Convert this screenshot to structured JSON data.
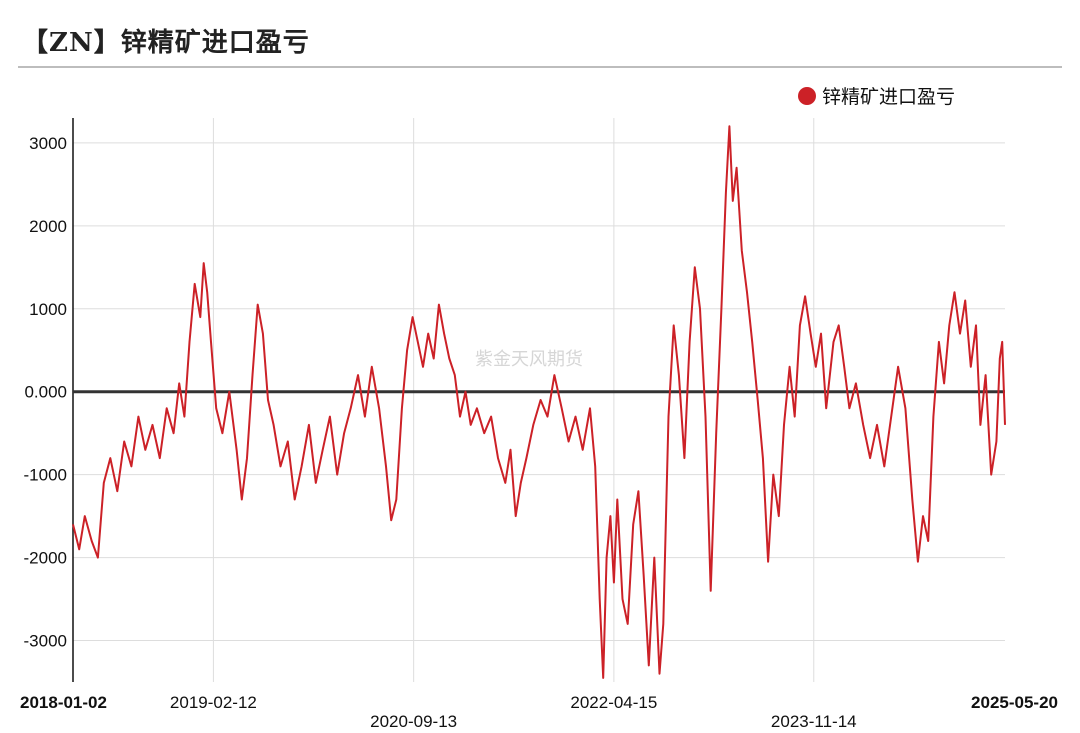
{
  "title": "【ZN】锌精矿进口盈亏",
  "watermark": "紫金天风期货",
  "colors": {
    "series": "#cc2127",
    "zero_line": "#333333",
    "grid": "#dddddd"
  },
  "chart_data": {
    "type": "line",
    "title": "【ZN】锌精矿进口盈亏",
    "xlabel": "",
    "ylabel": "",
    "ylim": [
      -3500,
      3300
    ],
    "yticks": [
      3000,
      2000,
      1000,
      0,
      -1000,
      -2000,
      -3000
    ],
    "ytick_labels": [
      "3000",
      "2000",
      "1000",
      "0.000",
      "-1000",
      "-2000",
      "-3000"
    ],
    "x_range": [
      "2018-01-02",
      "2025-05-20"
    ],
    "xticks": [
      "2018-01-02",
      "2019-02-12",
      "2020-09-13",
      "2022-04-15",
      "2023-11-14",
      "2025-05-20"
    ],
    "grid": true,
    "legend": "top-right",
    "series": [
      {
        "name": "锌精矿进口盈亏",
        "color": "#cc2127",
        "points": [
          [
            "2018-01-02",
            -1600
          ],
          [
            "2018-01-20",
            -1900
          ],
          [
            "2018-02-05",
            -1500
          ],
          [
            "2018-02-25",
            -1800
          ],
          [
            "2018-03-15",
            -2000
          ],
          [
            "2018-04-01",
            -1100
          ],
          [
            "2018-04-20",
            -800
          ],
          [
            "2018-05-10",
            -1200
          ],
          [
            "2018-05-30",
            -600
          ],
          [
            "2018-06-20",
            -900
          ],
          [
            "2018-07-10",
            -300
          ],
          [
            "2018-07-30",
            -700
          ],
          [
            "2018-08-20",
            -400
          ],
          [
            "2018-09-10",
            -800
          ],
          [
            "2018-09-30",
            -200
          ],
          [
            "2018-10-20",
            -500
          ],
          [
            "2018-11-05",
            100
          ],
          [
            "2018-11-20",
            -300
          ],
          [
            "2018-12-05",
            600
          ],
          [
            "2018-12-20",
            1300
          ],
          [
            "2019-01-05",
            900
          ],
          [
            "2019-01-15",
            1550
          ],
          [
            "2019-01-25",
            1200
          ],
          [
            "2019-02-05",
            600
          ],
          [
            "2019-02-20",
            -200
          ],
          [
            "2019-03-10",
            -500
          ],
          [
            "2019-03-30",
            0
          ],
          [
            "2019-04-20",
            -700
          ],
          [
            "2019-05-05",
            -1300
          ],
          [
            "2019-05-20",
            -800
          ],
          [
            "2019-06-05",
            200
          ],
          [
            "2019-06-20",
            1050
          ],
          [
            "2019-07-05",
            700
          ],
          [
            "2019-07-20",
            -100
          ],
          [
            "2019-08-05",
            -400
          ],
          [
            "2019-08-25",
            -900
          ],
          [
            "2019-09-15",
            -600
          ],
          [
            "2019-10-05",
            -1300
          ],
          [
            "2019-10-25",
            -900
          ],
          [
            "2019-11-15",
            -400
          ],
          [
            "2019-12-05",
            -1100
          ],
          [
            "2019-12-25",
            -700
          ],
          [
            "2020-01-15",
            -300
          ],
          [
            "2020-02-05",
            -1000
          ],
          [
            "2020-02-25",
            -500
          ],
          [
            "2020-03-15",
            -200
          ],
          [
            "2020-04-05",
            200
          ],
          [
            "2020-04-25",
            -300
          ],
          [
            "2020-05-15",
            300
          ],
          [
            "2020-06-05",
            -200
          ],
          [
            "2020-06-25",
            -900
          ],
          [
            "2020-07-10",
            -1550
          ],
          [
            "2020-07-25",
            -1300
          ],
          [
            "2020-08-10",
            -200
          ],
          [
            "2020-08-25",
            500
          ],
          [
            "2020-09-10",
            900
          ],
          [
            "2020-09-25",
            600
          ],
          [
            "2020-10-10",
            300
          ],
          [
            "2020-10-25",
            700
          ],
          [
            "2020-11-10",
            400
          ],
          [
            "2020-11-25",
            1050
          ],
          [
            "2020-12-10",
            700
          ],
          [
            "2020-12-25",
            400
          ],
          [
            "2021-01-10",
            200
          ],
          [
            "2021-01-25",
            -300
          ],
          [
            "2021-02-10",
            0
          ],
          [
            "2021-02-25",
            -400
          ],
          [
            "2021-03-15",
            -200
          ],
          [
            "2021-04-05",
            -500
          ],
          [
            "2021-04-25",
            -300
          ],
          [
            "2021-05-15",
            -800
          ],
          [
            "2021-06-05",
            -1100
          ],
          [
            "2021-06-20",
            -700
          ],
          [
            "2021-07-05",
            -1500
          ],
          [
            "2021-07-20",
            -1100
          ],
          [
            "2021-08-05",
            -800
          ],
          [
            "2021-08-25",
            -400
          ],
          [
            "2021-09-15",
            -100
          ],
          [
            "2021-10-05",
            -300
          ],
          [
            "2021-10-25",
            200
          ],
          [
            "2021-11-15",
            -200
          ],
          [
            "2021-12-05",
            -600
          ],
          [
            "2021-12-25",
            -300
          ],
          [
            "2022-01-15",
            -700
          ],
          [
            "2022-02-05",
            -200
          ],
          [
            "2022-02-20",
            -900
          ],
          [
            "2022-03-05",
            -2500
          ],
          [
            "2022-03-15",
            -3450
          ],
          [
            "2022-03-25",
            -2000
          ],
          [
            "2022-04-05",
            -1500
          ],
          [
            "2022-04-15",
            -2300
          ],
          [
            "2022-04-25",
            -1300
          ],
          [
            "2022-05-10",
            -2500
          ],
          [
            "2022-05-25",
            -2800
          ],
          [
            "2022-06-10",
            -1600
          ],
          [
            "2022-06-25",
            -1200
          ],
          [
            "2022-07-10",
            -2200
          ],
          [
            "2022-07-25",
            -3300
          ],
          [
            "2022-08-10",
            -2000
          ],
          [
            "2022-08-25",
            -3400
          ],
          [
            "2022-09-05",
            -2800
          ],
          [
            "2022-09-20",
            -300
          ],
          [
            "2022-10-05",
            800
          ],
          [
            "2022-10-20",
            200
          ],
          [
            "2022-11-05",
            -800
          ],
          [
            "2022-11-20",
            600
          ],
          [
            "2022-12-05",
            1500
          ],
          [
            "2022-12-20",
            1000
          ],
          [
            "2023-01-05",
            -300
          ],
          [
            "2023-01-20",
            -2400
          ],
          [
            "2023-02-05",
            -500
          ],
          [
            "2023-02-20",
            1000
          ],
          [
            "2023-03-05",
            2400
          ],
          [
            "2023-03-15",
            3200
          ],
          [
            "2023-03-25",
            2300
          ],
          [
            "2023-04-05",
            2700
          ],
          [
            "2023-04-20",
            1700
          ],
          [
            "2023-05-05",
            1200
          ],
          [
            "2023-05-20",
            600
          ],
          [
            "2023-06-05",
            -100
          ],
          [
            "2023-06-20",
            -800
          ],
          [
            "2023-07-05",
            -2050
          ],
          [
            "2023-07-20",
            -1000
          ],
          [
            "2023-08-05",
            -1500
          ],
          [
            "2023-08-20",
            -400
          ],
          [
            "2023-09-05",
            300
          ],
          [
            "2023-09-20",
            -300
          ],
          [
            "2023-10-05",
            800
          ],
          [
            "2023-10-20",
            1150
          ],
          [
            "2023-11-05",
            700
          ],
          [
            "2023-11-20",
            300
          ],
          [
            "2023-12-05",
            700
          ],
          [
            "2023-12-20",
            -200
          ],
          [
            "2024-01-10",
            600
          ],
          [
            "2024-01-25",
            800
          ],
          [
            "2024-02-10",
            300
          ],
          [
            "2024-02-25",
            -200
          ],
          [
            "2024-03-15",
            100
          ],
          [
            "2024-04-05",
            -400
          ],
          [
            "2024-04-25",
            -800
          ],
          [
            "2024-05-15",
            -400
          ],
          [
            "2024-06-05",
            -900
          ],
          [
            "2024-06-25",
            -300
          ],
          [
            "2024-07-15",
            300
          ],
          [
            "2024-08-05",
            -200
          ],
          [
            "2024-08-25",
            -1300
          ],
          [
            "2024-09-10",
            -2050
          ],
          [
            "2024-09-25",
            -1500
          ],
          [
            "2024-10-10",
            -1800
          ],
          [
            "2024-10-25",
            -300
          ],
          [
            "2024-11-10",
            600
          ],
          [
            "2024-11-25",
            100
          ],
          [
            "2024-12-10",
            800
          ],
          [
            "2024-12-25",
            1200
          ],
          [
            "2025-01-10",
            700
          ],
          [
            "2025-01-25",
            1100
          ],
          [
            "2025-02-10",
            300
          ],
          [
            "2025-02-25",
            800
          ],
          [
            "2025-03-10",
            -400
          ],
          [
            "2025-03-25",
            200
          ],
          [
            "2025-04-10",
            -1000
          ],
          [
            "2025-04-25",
            -600
          ],
          [
            "2025-05-05",
            400
          ],
          [
            "2025-05-12",
            600
          ],
          [
            "2025-05-20",
            -400
          ]
        ]
      }
    ]
  }
}
